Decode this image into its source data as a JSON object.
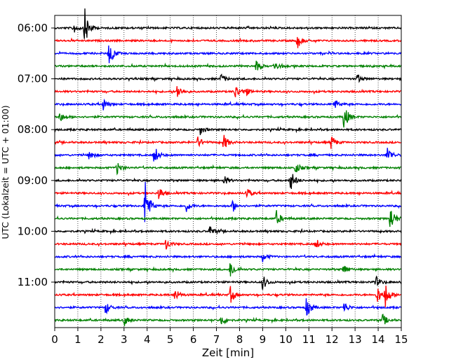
{
  "chart_data": {
    "type": "line",
    "title": "",
    "xlabel": "Zeit  [min]",
    "ylabel": "UTC (Lokalzeit = UTC + 01:00)",
    "xlim": [
      0,
      15
    ],
    "xticks": [
      0,
      1,
      2,
      3,
      4,
      5,
      6,
      7,
      8,
      9,
      10,
      11,
      12,
      13,
      14,
      15
    ],
    "ytick_labels": [
      "06:00",
      "07:00",
      "08:00",
      "09:00",
      "10:00",
      "11:00"
    ],
    "grid": "vertical dotted",
    "trace_interval_minutes": 15,
    "trace_colors": [
      "#000000",
      "#ff0000",
      "#0000ff",
      "#008000"
    ],
    "series": [
      {
        "start": "06:00",
        "color": "#000000",
        "events": [
          {
            "x": 1.3,
            "amp": 1.0
          },
          {
            "x": 0.8,
            "amp": 0.3
          }
        ]
      },
      {
        "start": "06:15",
        "color": "#ff0000",
        "events": [
          {
            "x": 10.5,
            "amp": 0.4
          }
        ]
      },
      {
        "start": "06:30",
        "color": "#0000ff",
        "events": [
          {
            "x": 2.35,
            "amp": 0.7
          }
        ]
      },
      {
        "start": "06:45",
        "color": "#008000",
        "events": [
          {
            "x": 8.7,
            "amp": 0.3
          },
          {
            "x": 9.5,
            "amp": 0.3
          }
        ]
      },
      {
        "start": "07:00",
        "color": "#000000",
        "events": [
          {
            "x": 7.2,
            "amp": 0.25
          },
          {
            "x": 13.1,
            "amp": 0.25
          }
        ]
      },
      {
        "start": "07:15",
        "color": "#ff0000",
        "events": [
          {
            "x": 5.3,
            "amp": 0.4
          },
          {
            "x": 7.8,
            "amp": 0.4
          },
          {
            "x": 8.2,
            "amp": 0.3
          }
        ]
      },
      {
        "start": "07:30",
        "color": "#0000ff",
        "events": [
          {
            "x": 2.1,
            "amp": 0.3
          },
          {
            "x": 12.1,
            "amp": 0.3
          }
        ]
      },
      {
        "start": "07:45",
        "color": "#008000",
        "events": [
          {
            "x": 12.5,
            "amp": 0.8
          },
          {
            "x": 0.2,
            "amp": 0.3
          }
        ]
      },
      {
        "start": "08:00",
        "color": "#000000",
        "events": [
          {
            "x": 6.3,
            "amp": 0.25
          }
        ]
      },
      {
        "start": "08:15",
        "color": "#ff0000",
        "events": [
          {
            "x": 7.3,
            "amp": 0.45
          },
          {
            "x": 11.95,
            "amp": 0.4
          },
          {
            "x": 6.2,
            "amp": 0.3
          }
        ]
      },
      {
        "start": "08:30",
        "color": "#0000ff",
        "events": [
          {
            "x": 4.3,
            "amp": 0.55
          },
          {
            "x": 14.4,
            "amp": 0.45
          },
          {
            "x": 1.5,
            "amp": 0.3
          }
        ]
      },
      {
        "start": "08:45",
        "color": "#008000",
        "events": [
          {
            "x": 2.7,
            "amp": 0.35
          },
          {
            "x": 10.4,
            "amp": 0.35
          }
        ]
      },
      {
        "start": "09:00",
        "color": "#000000",
        "events": [
          {
            "x": 10.2,
            "amp": 0.6
          },
          {
            "x": 7.3,
            "amp": 0.3
          }
        ]
      },
      {
        "start": "09:15",
        "color": "#ff0000",
        "events": [
          {
            "x": 4.5,
            "amp": 0.35
          },
          {
            "x": 8.3,
            "amp": 0.3
          }
        ]
      },
      {
        "start": "09:30",
        "color": "#0000ff",
        "events": [
          {
            "x": 3.9,
            "amp": 1.5
          },
          {
            "x": 5.7,
            "amp": 0.3
          },
          {
            "x": 7.7,
            "amp": 0.3
          }
        ]
      },
      {
        "start": "09:45",
        "color": "#008000",
        "events": [
          {
            "x": 14.5,
            "amp": 0.8
          },
          {
            "x": 9.6,
            "amp": 0.4
          }
        ]
      },
      {
        "start": "10:00",
        "color": "#000000",
        "events": [
          {
            "x": 6.7,
            "amp": 0.3
          }
        ]
      },
      {
        "start": "10:15",
        "color": "#ff0000",
        "events": [
          {
            "x": 4.8,
            "amp": 0.3
          },
          {
            "x": 11.3,
            "amp": 0.3
          }
        ]
      },
      {
        "start": "10:30",
        "color": "#0000ff",
        "events": [
          {
            "x": 9.0,
            "amp": 0.25
          }
        ]
      },
      {
        "start": "10:45",
        "color": "#008000",
        "events": [
          {
            "x": 7.6,
            "amp": 0.45
          },
          {
            "x": 12.5,
            "amp": 0.3
          }
        ]
      },
      {
        "start": "11:00",
        "color": "#000000",
        "events": [
          {
            "x": 9.0,
            "amp": 0.4
          },
          {
            "x": 13.9,
            "amp": 0.3
          }
        ]
      },
      {
        "start": "11:15",
        "color": "#ff0000",
        "events": [
          {
            "x": 5.2,
            "amp": 0.35
          },
          {
            "x": 7.6,
            "amp": 0.45
          },
          {
            "x": 14.3,
            "amp": 0.7
          },
          {
            "x": 13.95,
            "amp": 0.5
          }
        ]
      },
      {
        "start": "11:30",
        "color": "#0000ff",
        "events": [
          {
            "x": 10.9,
            "amp": 0.6
          },
          {
            "x": 12.5,
            "amp": 0.35
          },
          {
            "x": 2.2,
            "amp": 0.35
          }
        ]
      },
      {
        "start": "11:45",
        "color": "#008000",
        "events": [
          {
            "x": 3.0,
            "amp": 0.3
          },
          {
            "x": 7.2,
            "amp": 0.3
          },
          {
            "x": 14.2,
            "amp": 0.3
          }
        ]
      }
    ]
  }
}
